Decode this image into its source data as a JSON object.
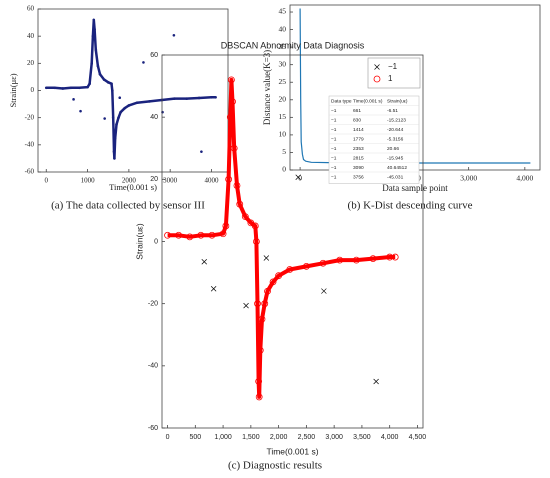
{
  "chart_data": [
    {
      "type": "scatter",
      "caption": "(a) The data collected by sensor III",
      "xlabel": "Time(0.001 s)",
      "ylabel": "Strain(με)",
      "xlim": [
        -200,
        4400
      ],
      "ylim": [
        -60,
        60
      ],
      "xticks": [
        0,
        1000,
        2000,
        3000,
        4000
      ],
      "yticks": [
        -60,
        -40,
        -20,
        0,
        20,
        40,
        60
      ],
      "series": [
        {
          "color": "#1a237e",
          "marker": "dot",
          "connect": true,
          "x": [
            0,
            200,
            400,
            600,
            800,
            1000,
            1050,
            1100,
            1130,
            1150,
            1170,
            1200,
            1250,
            1300,
            1400,
            1500,
            1580,
            1600,
            1620,
            1640,
            1650,
            1670,
            1700,
            1750,
            1800,
            1900,
            2000,
            2200,
            2500,
            2800,
            3100,
            3400,
            3700,
            4000,
            4100
          ],
          "values": [
            2,
            2,
            1.5,
            2,
            2,
            2.5,
            5,
            20,
            40,
            52,
            45,
            30,
            18,
            12,
            8,
            6,
            5,
            0,
            -20,
            -45,
            -50,
            -35,
            -25,
            -20,
            -16,
            -13,
            -11,
            -9,
            -8,
            -7,
            -6,
            -6,
            -5.5,
            -5,
            -5
          ]
        },
        {
          "color": "#1a237e",
          "marker": "dot",
          "x": [
            661,
            830,
            1414,
            1779,
            2353,
            2815,
            3090,
            3756
          ],
          "values": [
            -6.51,
            -15.2123,
            -20.644,
            -5.3156,
            20.66,
            -15.945,
            40.64512,
            -45.031
          ]
        }
      ]
    },
    {
      "type": "line",
      "caption": "(b) K-Dist descending curve",
      "xlabel": "Data sample point",
      "ylabel": "Distance value(K=3)",
      "xlim": [
        -180,
        4270
      ],
      "ylim": [
        0,
        47
      ],
      "xticks": [
        0,
        {
          "value": 1000,
          "label": "1,000"
        },
        {
          "value": 2000,
          "label": "2,000"
        },
        {
          "value": 3000,
          "label": "3,000"
        },
        {
          "value": 4000,
          "label": "4,000"
        }
      ],
      "yticks": [
        0,
        5,
        10,
        15,
        20,
        25,
        30,
        35,
        40,
        45
      ],
      "series": [
        {
          "color": "#1f77b4",
          "x": [
            0,
            10,
            20,
            40,
            60,
            100,
            200,
            500,
            1000,
            2000,
            3000,
            4000,
            4100
          ],
          "values": [
            46,
            20,
            8,
            4.5,
            3,
            2.5,
            2.2,
            2.1,
            2.05,
            2,
            2,
            2,
            2
          ]
        }
      ]
    },
    {
      "type": "scatter",
      "title": "DBSCAN Abnormity Data Diagnosis",
      "caption": "(c) Diagnostic results",
      "xlabel": "Time(0.001 s)",
      "ylabel": "Strain(uε)",
      "xlim": [
        -100,
        4600
      ],
      "ylim": [
        -60,
        60
      ],
      "legend": "upper right",
      "xticks": [
        0,
        500,
        {
          "value": 1000,
          "label": "1,000"
        },
        {
          "value": 1500,
          "label": "1,500"
        },
        {
          "value": 2000,
          "label": "2,000"
        },
        {
          "value": 2500,
          "label": "2,500"
        },
        {
          "value": 3000,
          "label": "3,000"
        },
        {
          "value": 3500,
          "label": "3,500"
        },
        {
          "value": 4000,
          "label": "4,000"
        },
        {
          "value": 4500,
          "label": "4,500"
        }
      ],
      "yticks": [
        -60,
        -40,
        -20,
        0,
        20,
        40,
        60
      ],
      "series": [
        {
          "name": "−1",
          "color": "#000000",
          "marker": "x",
          "x": [
            661,
            830,
            1414,
            1779,
            2353,
            2815,
            3090,
            3756
          ],
          "values": [
            -6.51,
            -15.2123,
            -20.644,
            -5.3156,
            20.66,
            -15.945,
            40.64512,
            -45.031
          ]
        },
        {
          "name": "1",
          "color": "#ff0000",
          "marker": "o",
          "connect": true,
          "x": [
            0,
            200,
            400,
            600,
            800,
            1000,
            1050,
            1100,
            1130,
            1150,
            1170,
            1200,
            1250,
            1300,
            1400,
            1500,
            1580,
            1600,
            1620,
            1640,
            1650,
            1670,
            1700,
            1750,
            1800,
            1900,
            2000,
            2200,
            2500,
            2800,
            3100,
            3400,
            3700,
            4000,
            4100
          ],
          "values": [
            2,
            2,
            1.5,
            2,
            2,
            2.5,
            5,
            20,
            40,
            52,
            45,
            30,
            18,
            12,
            8,
            6,
            5,
            0,
            -20,
            -45,
            -50,
            -35,
            -25,
            -20,
            -16,
            -13,
            -11,
            -9,
            -8,
            -7,
            -6,
            -6,
            -5.5,
            -5,
            -5
          ]
        }
      ],
      "table": {
        "columns": [
          "Data type",
          "Time(0.001 s)",
          "Strain(uε)"
        ],
        "rows": [
          [
            "−1",
            "661",
            "-6.51"
          ],
          [
            "−1",
            "830",
            "-15.2123"
          ],
          [
            "−1",
            "1414",
            "-20.644"
          ],
          [
            "−1",
            "1779",
            "-5.3156"
          ],
          [
            "−1",
            "2353",
            "20.66"
          ],
          [
            "−1",
            "2815",
            "-15.945"
          ],
          [
            "−1",
            "3090",
            "40.64512"
          ],
          [
            "−1",
            "3756",
            "-45.031"
          ]
        ]
      }
    }
  ]
}
